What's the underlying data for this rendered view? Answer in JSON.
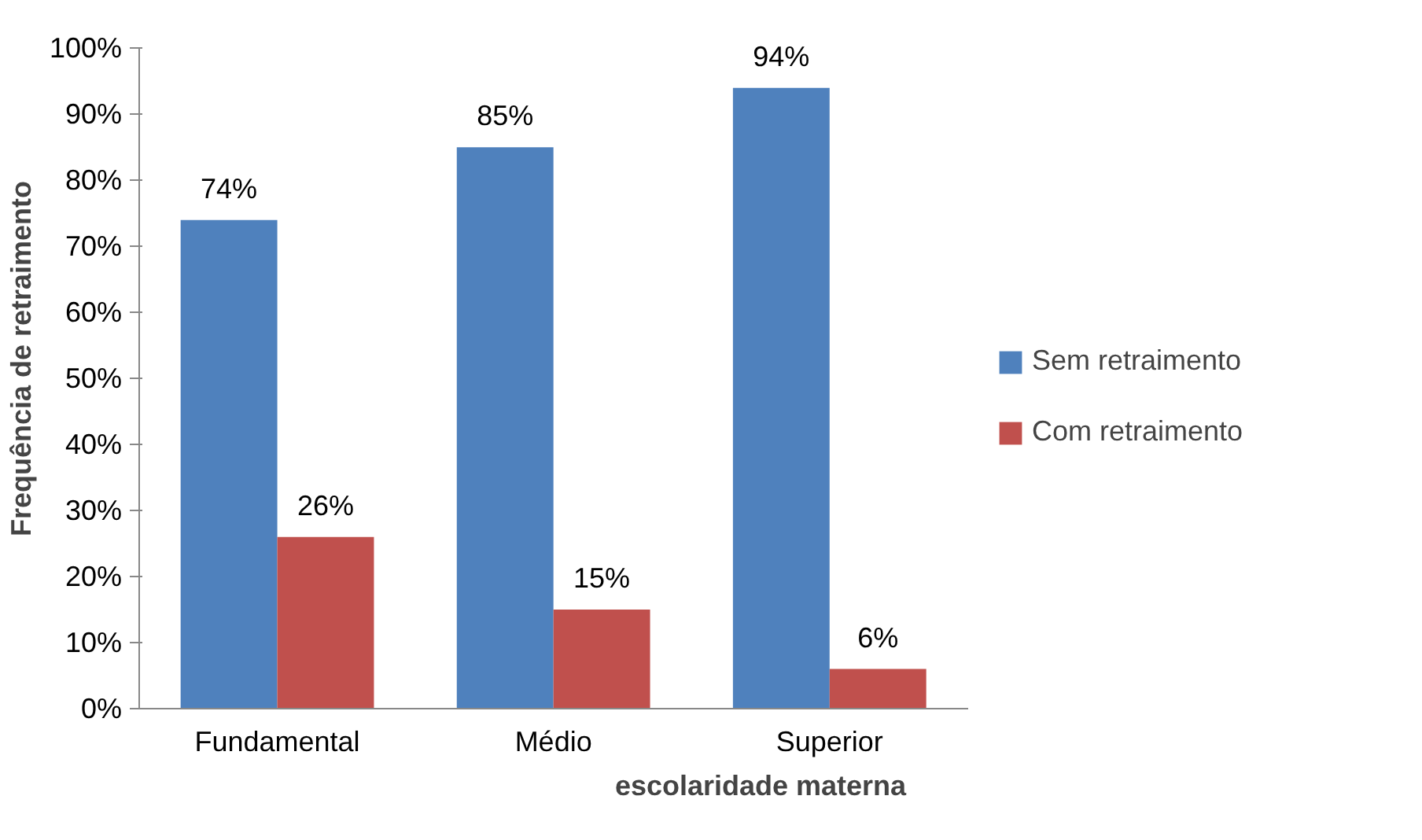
{
  "chart_data": {
    "type": "bar",
    "xlabel": "escolaridade materna",
    "ylabel": "Frequência de retraimento",
    "categories": [
      "Fundamental",
      "Médio",
      "Superior"
    ],
    "series": [
      {
        "name": "Sem retraimento",
        "color": "#4f81bd",
        "values": [
          74,
          85,
          94
        ],
        "value_labels": [
          "74%",
          "85%",
          "94%"
        ]
      },
      {
        "name": "Com retraimento",
        "color": "#c0504d",
        "values": [
          26,
          15,
          6
        ],
        "value_labels": [
          "26%",
          "15%",
          "6%"
        ]
      }
    ],
    "ylim": [
      0,
      100
    ],
    "yticks": [
      {
        "value": 0,
        "label": "0%"
      },
      {
        "value": 10,
        "label": "10%"
      },
      {
        "value": 20,
        "label": "20%"
      },
      {
        "value": 30,
        "label": "30%"
      },
      {
        "value": 40,
        "label": "40%"
      },
      {
        "value": 50,
        "label": "50%"
      },
      {
        "value": 60,
        "label": "60%"
      },
      {
        "value": 70,
        "label": "70%"
      },
      {
        "value": 80,
        "label": "80%"
      },
      {
        "value": 90,
        "label": "90%"
      },
      {
        "value": 100,
        "label": "100%"
      }
    ],
    "grid": false,
    "legend": "right"
  }
}
